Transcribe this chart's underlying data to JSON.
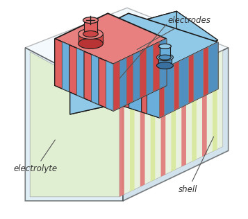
{
  "bg_color": "#ffffff",
  "label_electrodes": "electrodes",
  "label_electrolyte": "electrolyte",
  "label_shell": "shell",
  "colors": {
    "red_bright": "#e06060",
    "red_mid": "#cc4444",
    "red_dark": "#b83333",
    "red_top": "#e88080",
    "blue_bright": "#6aaedc",
    "blue_mid": "#5090c0",
    "blue_dark": "#3a70a0",
    "blue_top": "#90c8e8",
    "shell_front": "#c8e0f0",
    "shell_side": "#b0cce0",
    "shell_top": "#d8eef8",
    "elec_front": "#e0eecc",
    "elec_side_light": "#f0f8d8",
    "elec_side_mid": "#ddeaaa",
    "elec_side_stripe_r": "#e06060",
    "elec_side_stripe_g": "#d4e888",
    "outline": "#1a1a1a"
  },
  "figsize": [
    3.57,
    3.16
  ],
  "dpi": 100
}
